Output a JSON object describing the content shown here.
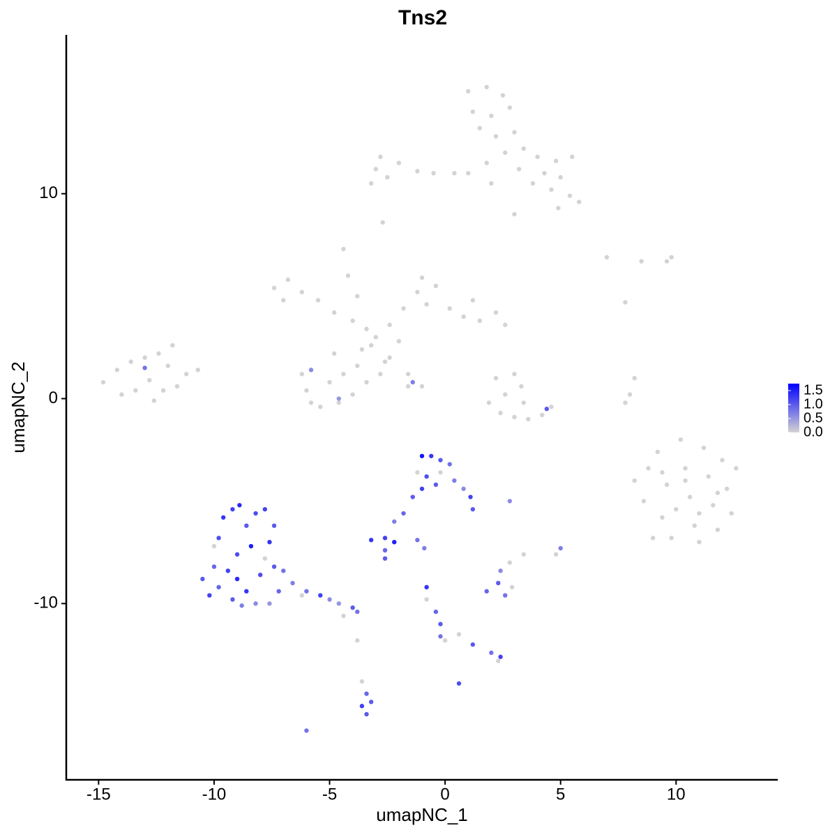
{
  "chart_data": {
    "type": "scatter",
    "title": "Tns2",
    "x_label": "umapNC_1",
    "y_label": "umapNC_2",
    "xlim": [
      -16.4,
      14.4
    ],
    "ylim": [
      -18.6,
      17.75
    ],
    "xticks": [
      -15,
      -10,
      -5,
      0,
      5,
      10
    ],
    "yticks": [
      -10,
      0,
      10
    ],
    "low_color": "#d3d3d3",
    "high_color": "#0000ff",
    "clim": [
      0,
      1.75
    ],
    "colorbar_ticks": [
      {
        "value": 0,
        "label": "0.0"
      },
      0.5,
      {
        "value": 1,
        "label": "1.0"
      },
      1.5
    ],
    "x": [
      1.0,
      1.8,
      2.5,
      1.2,
      2.0,
      2.8,
      1.5,
      2.2,
      3.0,
      3.4,
      2.6,
      4.0,
      4.8,
      5.5,
      4.3,
      5.0,
      3.8,
      4.6,
      5.4,
      4.9,
      5.8,
      3.2,
      1.8,
      1.0,
      0.4,
      -0.5,
      -1.2,
      -2.0,
      -2.8,
      -3.0,
      -2.5,
      -3.2,
      -2.7,
      3.0,
      2.0,
      -7.4,
      -6.8,
      -6.2,
      -5.5,
      -7.0,
      -4.8,
      -4.0,
      -3.4,
      -3.0,
      -2.4,
      -1.8,
      -1.2,
      -1.0,
      -0.4,
      -0.8,
      0.2,
      0.8,
      1.5,
      2.2,
      2.6,
      1.2,
      -4.4,
      -4.2,
      -3.8,
      -3.6,
      -3.8,
      -4.4,
      -5.0,
      -6.0,
      -6.2,
      -5.4,
      -4.6,
      -3.4,
      -4.0,
      -5.8,
      -2.4,
      -1.6,
      -1.0,
      -2.8,
      -4.8,
      -3.2,
      -2.0,
      -5.8,
      -4.6,
      -2.6,
      -1.6,
      -1.4,
      -14.8,
      -14.2,
      -13.6,
      -13.0,
      -12.4,
      -11.8,
      -12.0,
      -11.2,
      -10.7,
      -12.8,
      -13.4,
      -14.0,
      -12.2,
      -11.6,
      -12.6,
      -13.0,
      2.2,
      3.0,
      3.3,
      2.6,
      1.9,
      2.4,
      3.0,
      3.6,
      4.2,
      4.6,
      4.4,
      3.4,
      7.0,
      8.5,
      9.6,
      9.8,
      7.8,
      8.2,
      8.0,
      7.8,
      8.2,
      8.6,
      8.8,
      9.2,
      9.6,
      9.4,
      9.8,
      10.2,
      10.4,
      10.6,
      10.8,
      11.0,
      11.2,
      11.4,
      11.6,
      11.8,
      12.0,
      12.2,
      12.6,
      12.4,
      10.0,
      9.0,
      10.4,
      11.0,
      9.4,
      11.8,
      -10.5,
      -10.2,
      -10.0,
      -9.8,
      -9.6,
      -9.2,
      -8.9,
      -8.6,
      -8.2,
      -7.8,
      -7.4,
      -7.6,
      -8.4,
      -9.0,
      -9.4,
      -9.8,
      -9.2,
      -8.6,
      -8.0,
      -7.4,
      -7.0,
      -8.2,
      -7.6,
      -8.8,
      -6.6,
      -6.0,
      -5.4,
      -5.0,
      -4.6,
      -4.0,
      -3.8,
      -10.0,
      -9.0,
      -7.8,
      -6.2,
      -4.4,
      -7.2,
      -1.0,
      -0.6,
      -0.2,
      0.2,
      -1.2,
      -0.8,
      -0.4,
      -1.0,
      -0.2,
      0.4,
      0.8,
      1.1,
      1.2,
      -1.4,
      -1.8,
      -2.2,
      -3.2,
      -2.6,
      -2.2,
      -2.6,
      -2.6,
      -1.2,
      -0.9,
      2.8,
      5.0,
      4.8,
      3.4,
      1.8,
      2.3,
      2.6,
      2.9,
      2.4,
      2.8,
      -0.8,
      -0.8,
      -0.4,
      -0.2,
      -0.2,
      0.0,
      0.6,
      1.2,
      2.0,
      2.4,
      2.3,
      0.6,
      -3.8,
      -3.6,
      -3.4,
      -3.2,
      -3.6,
      -3.4,
      -6.0
    ],
    "y": [
      15.0,
      15.2,
      14.8,
      14.0,
      13.8,
      14.2,
      13.2,
      12.8,
      13.0,
      12.2,
      12.0,
      11.8,
      11.6,
      11.8,
      11.0,
      10.8,
      10.5,
      10.2,
      9.9,
      9.3,
      9.6,
      11.2,
      11.5,
      11.0,
      11.0,
      11.0,
      11.1,
      11.5,
      11.8,
      11.2,
      10.8,
      10.5,
      8.6,
      9.0,
      10.5,
      5.4,
      5.8,
      5.2,
      4.8,
      4.8,
      4.2,
      3.8,
      3.4,
      3.0,
      3.6,
      4.4,
      5.2,
      5.9,
      5.5,
      4.6,
      4.4,
      4.0,
      3.8,
      4.2,
      3.6,
      4.8,
      7.3,
      6.0,
      5.0,
      2.4,
      1.6,
      1.2,
      0.8,
      0.4,
      1.2,
      -0.4,
      -0.2,
      0.8,
      0.2,
      -0.2,
      2.0,
      1.2,
      0.6,
      1.2,
      2.2,
      2.6,
      2.8,
      1.4,
      0.0,
      1.8,
      0.6,
      0.8,
      0.8,
      1.4,
      1.8,
      2.0,
      2.2,
      2.6,
      1.6,
      1.2,
      1.4,
      0.9,
      0.4,
      0.2,
      0.4,
      0.6,
      -0.1,
      1.5,
      1.0,
      1.2,
      0.6,
      0.2,
      -0.2,
      -0.7,
      -0.9,
      -1.0,
      -0.8,
      -0.4,
      -0.5,
      -0.2,
      6.9,
      6.7,
      6.7,
      6.9,
      4.7,
      1.0,
      0.2,
      -0.2,
      -4.0,
      -5.0,
      -3.4,
      -2.6,
      -4.2,
      -5.8,
      -6.8,
      -2.0,
      -3.4,
      -4.8,
      -6.2,
      -7.0,
      -2.4,
      -3.8,
      -5.2,
      -6.4,
      -3.0,
      -4.4,
      -3.4,
      -5.6,
      -5.4,
      -6.8,
      -4.0,
      -5.6,
      -3.6,
      -4.6,
      -8.8,
      -9.6,
      -8.2,
      -6.8,
      -5.8,
      -5.4,
      -5.2,
      -6.2,
      -5.6,
      -5.4,
      -6.2,
      -7.0,
      -7.2,
      -7.6,
      -8.4,
      -9.2,
      -9.8,
      -9.4,
      -8.6,
      -8.2,
      -8.4,
      -10.0,
      -10.0,
      -10.1,
      -9.0,
      -9.4,
      -9.6,
      -9.8,
      -10.0,
      -10.2,
      -10.4,
      -7.2,
      -8.8,
      -7.8,
      -9.6,
      -10.6,
      -9.4,
      -2.8,
      -2.8,
      -3.0,
      -3.2,
      -3.6,
      -3.8,
      -4.2,
      -4.4,
      -3.6,
      -4.0,
      -4.4,
      -4.8,
      -5.4,
      -4.8,
      -5.6,
      -6.0,
      -6.9,
      -6.8,
      -7.0,
      -7.4,
      -7.8,
      -6.9,
      -7.3,
      -5.0,
      -7.3,
      -7.6,
      -7.6,
      -9.4,
      -9.0,
      -9.6,
      -9.2,
      -8.4,
      -8.0,
      -9.2,
      -9.8,
      -10.4,
      -11.0,
      -11.6,
      -11.8,
      -11.5,
      -12.0,
      -12.4,
      -12.6,
      -12.8,
      -13.9,
      -11.8,
      -13.8,
      -14.4,
      -14.8,
      -15.0,
      -15.4,
      -16.2
    ],
    "values": [
      0,
      0,
      0,
      0,
      0,
      0,
      0,
      0,
      0,
      0,
      0,
      0,
      0,
      0,
      0,
      0,
      0,
      0,
      0,
      0,
      0,
      0,
      0,
      0,
      0,
      0,
      0,
      0,
      0,
      0,
      0,
      0,
      0,
      0,
      0,
      0,
      0,
      0,
      0,
      0,
      0,
      0,
      0,
      0,
      0,
      0,
      0,
      0,
      0,
      0,
      0,
      0,
      0,
      0,
      0,
      0,
      0,
      0,
      0,
      0,
      0,
      0,
      0,
      0,
      0,
      0,
      0,
      0,
      0,
      0,
      0,
      0,
      0,
      0,
      0,
      0,
      0,
      0.6,
      0.5,
      0,
      0,
      0.7,
      0,
      0,
      0,
      0,
      0,
      0,
      0,
      0,
      0,
      0,
      0,
      0,
      0,
      0,
      0,
      0.8,
      0,
      0,
      0,
      0,
      0,
      0,
      0,
      0,
      0,
      0,
      1.0,
      0,
      0,
      0,
      0,
      0,
      0,
      0,
      0,
      0,
      0,
      0,
      0,
      0,
      0,
      0,
      0,
      0,
      0,
      0,
      0,
      0,
      0,
      0,
      0,
      0,
      0,
      0,
      0,
      0,
      0,
      0,
      0,
      0,
      0,
      0,
      1.0,
      1.2,
      0.9,
      1.1,
      1.3,
      1.2,
      1.4,
      1.0,
      1.1,
      1.2,
      1.0,
      1.3,
      1.5,
      1.1,
      1.2,
      0.9,
      1.0,
      1.3,
      1.1,
      1.0,
      0.8,
      0.6,
      0.5,
      0.7,
      0.7,
      0.8,
      1.2,
      0.6,
      0.5,
      1.0,
      0.8,
      0,
      1.4,
      0,
      0,
      0,
      0.9,
      1.6,
      1.3,
      1.0,
      0.8,
      0,
      1.1,
      1.0,
      1.2,
      0,
      0.7,
      0.6,
      1.2,
      1.0,
      1.0,
      0.9,
      0.7,
      1.3,
      1.2,
      1.5,
      0.9,
      1.0,
      0.8,
      0.7,
      0.6,
      0.7,
      0,
      0,
      0.9,
      1.0,
      0.8,
      0,
      0.6,
      0,
      1.3,
      0,
      0.9,
      1.0,
      0.8,
      0,
      0,
      1.0,
      0.8,
      1.2,
      0,
      1.1,
      0,
      0,
      0.9,
      1.0,
      1.2,
      1.0,
      0.8
    ]
  }
}
